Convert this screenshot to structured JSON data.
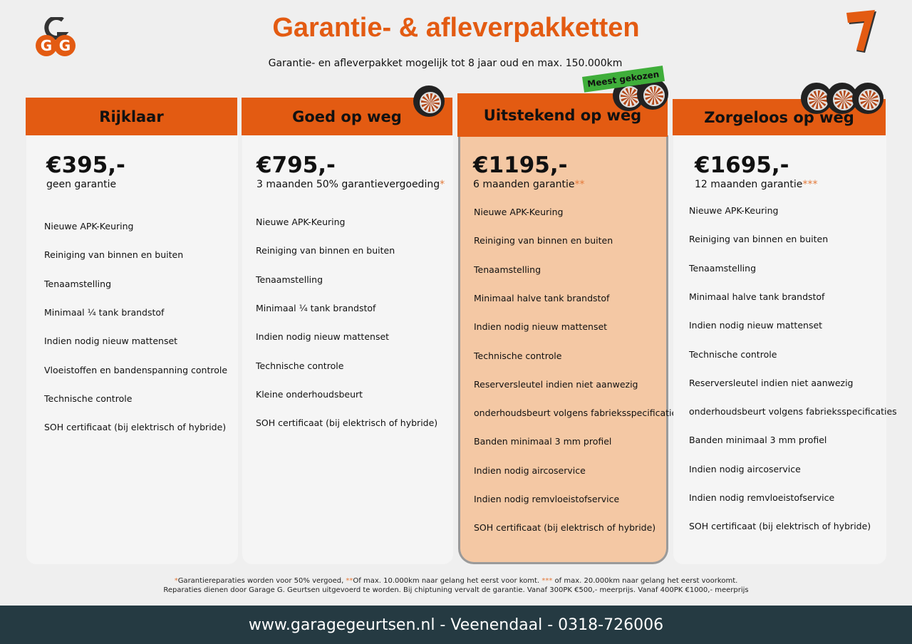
{
  "header": {
    "title": "Garantie- & afleverpakketten",
    "subtitle": "Garantie- en afleverpakket mogelijk tot 8 jaar oud en max. 150.000km",
    "logo_text": "GGG",
    "badge": "Meest gekozen"
  },
  "packages": [
    {
      "name": "Rijklaar",
      "price": "€395,-",
      "warranty": "geen garantie",
      "mark": "",
      "wheels": 0,
      "features": [
        "Nieuwe APK-Keuring",
        "Reiniging van binnen en buiten",
        "Tenaamstelling",
        "Minimaal ¼  tank brandstof",
        "Indien nodig nieuw mattenset",
        "Vloeistoffen en bandenspanning controle",
        "Technische controle",
        "SOH certificaat (bij elektrisch of hybride)"
      ]
    },
    {
      "name": "Goed op weg",
      "price": "€795,-",
      "warranty": "3 maanden 50% garantievergoeding",
      "mark": "*",
      "wheels": 1,
      "features": [
        "Nieuwe APK-Keuring",
        "Reiniging van binnen en buiten",
        "Tenaamstelling",
        "Minimaal ¼ tank brandstof",
        "Indien nodig nieuw mattenset",
        "Technische controle",
        "Kleine onderhoudsbeurt",
        "SOH certificaat (bij elektrisch of hybride)"
      ]
    },
    {
      "name": "Uitstekend op weg",
      "price": "€1195,-",
      "warranty": "6 maanden garantie",
      "mark": "**",
      "wheels": 2,
      "highlighted": true,
      "features": [
        "Nieuwe APK-Keuring",
        "Reiniging van binnen en buiten",
        "Tenaamstelling",
        "Minimaal halve tank brandstof",
        "Indien nodig nieuw mattenset",
        "Technische controle",
        "Reserversleutel indien niet aanwezig",
        "onderhoudsbeurt volgens fabrieksspecificaties",
        "Banden minimaal 3 mm profiel",
        "Indien nodig aircoservice",
        "Indien nodig remvloeistofservice",
        "SOH certificaat (bij elektrisch of hybride)"
      ]
    },
    {
      "name": "Zorgeloos op weg",
      "price": "€1695,-",
      "warranty": "12 maanden garantie",
      "mark": "***",
      "wheels": 3,
      "features": [
        "Nieuwe APK-Keuring",
        "Reiniging van binnen en buiten",
        "Tenaamstelling",
        "Minimaal halve tank brandstof",
        "Indien nodig nieuw mattenset",
        "Technische controle",
        "Reserversleutel indien niet aanwezig",
        "onderhoudsbeurt volgens fabrieksspecificaties",
        "Banden minimaal 3 mm profiel",
        "Indien nodig aircoservice",
        "Indien nodig remvloeistofservice",
        "SOH certificaat (bij elektrisch of hybride)"
      ]
    }
  ],
  "footnotes": {
    "m1": "*",
    "t1": "Garantiereparaties worden voor 50% vergoed, ",
    "m2": "**",
    "t2": "Of max. 10.000km naar gelang het eerst voor komt. ",
    "m3": "***",
    "t3": " of max. 20.000km naar gelang het eerst voorkomt.",
    "line2": "Reparaties dienen door Garage G. Geurtsen uitgevoerd te worden. Bij chiptuning vervalt de garantie. Vanaf 300PK €500,- meerprijs. Vanaf 400PK €1000,- meerprijs"
  },
  "contact": "www.garagegeurtsen.nl - Veenendaal - 0318-726006",
  "colors": {
    "accent": "#e35b12",
    "highlight": "#f4c8a4",
    "badge": "#3fae3a",
    "footer": "#253a42"
  }
}
